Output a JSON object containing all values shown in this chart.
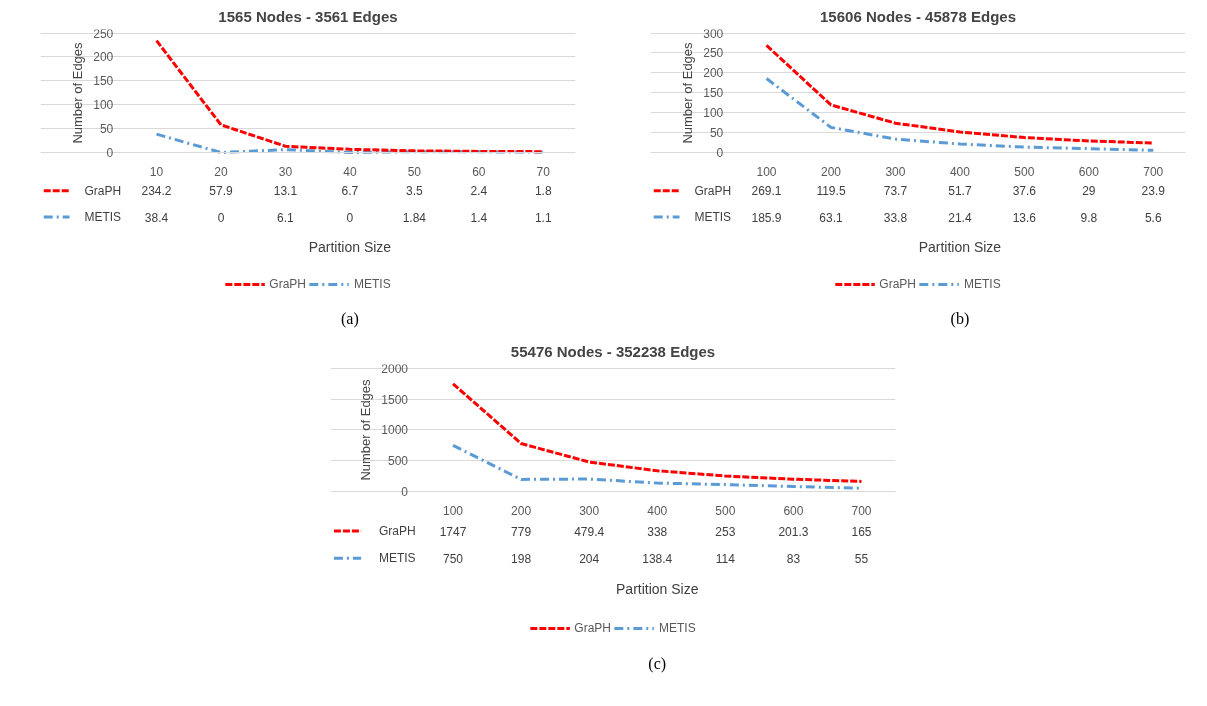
{
  "chart_data": [
    {
      "type": "line",
      "title": "1565 Nodes - 3561 Edges",
      "xlabel": "Partition Size",
      "ylabel": "Number of Edges",
      "categories": [
        "10",
        "20",
        "30",
        "40",
        "50",
        "60",
        "70"
      ],
      "series": [
        {
          "name": "GraPH",
          "color": "#ff0000",
          "line_style": "dashed",
          "values": [
            234.2,
            57.9,
            13.1,
            6.7,
            3.5,
            2.4,
            1.8
          ]
        },
        {
          "name": "METIS",
          "color": "#5b9bd5",
          "line_style": "dashdot",
          "values": [
            38.4,
            0,
            6.1,
            0,
            1.84,
            1.4,
            1.1
          ]
        }
      ],
      "ylim": [
        0,
        250
      ],
      "yticks": [
        0,
        50,
        100,
        150,
        200,
        250
      ],
      "grid": "y",
      "legend": "bottom",
      "data_labels": true,
      "annotations": [
        "(a)"
      ]
    },
    {
      "type": "line",
      "title": "15606 Nodes - 45878 Edges",
      "xlabel": "Partition Size",
      "ylabel": "Number of Edges",
      "categories": [
        "100",
        "200",
        "300",
        "400",
        "500",
        "600",
        "700"
      ],
      "series": [
        {
          "name": "GraPH",
          "color": "#ff0000",
          "line_style": "dashed",
          "values": [
            269.1,
            119.5,
            73.7,
            51.7,
            37.6,
            29,
            23.9
          ]
        },
        {
          "name": "METIS",
          "color": "#5b9bd5",
          "line_style": "dashdot",
          "values": [
            185.9,
            63.1,
            33.8,
            21.4,
            13.6,
            9.8,
            5.6
          ]
        }
      ],
      "ylim": [
        0,
        300
      ],
      "yticks": [
        0,
        50,
        100,
        150,
        200,
        250,
        300
      ],
      "grid": "y",
      "legend": "bottom",
      "data_labels": true,
      "annotations": [
        "(b)"
      ]
    },
    {
      "type": "line",
      "title": "55476 Nodes - 352238 Edges",
      "xlabel": "Partition Size",
      "ylabel": "Number of Edges",
      "categories": [
        "100",
        "200",
        "300",
        "400",
        "500",
        "600",
        "700"
      ],
      "series": [
        {
          "name": "GraPH",
          "color": "#ff0000",
          "line_style": "dashed",
          "values": [
            1747,
            779,
            479.4,
            338,
            253,
            201.3,
            165
          ]
        },
        {
          "name": "METIS",
          "color": "#5b9bd5",
          "line_style": "dashdot",
          "values": [
            750,
            198,
            204,
            138.4,
            114,
            83,
            55
          ]
        }
      ],
      "ylim": [
        0,
        2000
      ],
      "yticks": [
        0,
        500,
        1000,
        1500,
        2000
      ],
      "grid": "y",
      "legend": "bottom",
      "data_labels": true,
      "annotations": [
        "(c)"
      ]
    }
  ]
}
